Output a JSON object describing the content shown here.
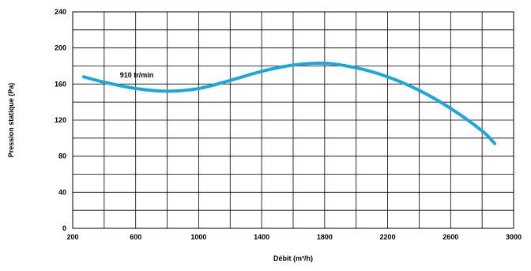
{
  "chart_data": {
    "type": "line",
    "title": "",
    "xlabel": "Débit (m³/h)",
    "ylabel": "Pression statique (Pa)",
    "xlim": [
      200,
      3000
    ],
    "ylim": [
      0,
      240
    ],
    "x_ticks": [
      "200",
      "600",
      "1000",
      "1400",
      "1800",
      "2200",
      "2600",
      "3000"
    ],
    "y_ticks": [
      "0",
      "40",
      "80",
      "120",
      "160",
      "200",
      "240"
    ],
    "grid": true,
    "series_color": "#1aa7e0",
    "series": [
      {
        "x": [
          270,
          400,
          600,
          800,
          1000,
          1200,
          1400,
          1600,
          1800,
          2000,
          2200,
          2400,
          2600,
          2800,
          2880
        ],
        "y": [
          168,
          162,
          155,
          152,
          155,
          164,
          174,
          181,
          183,
          178,
          168,
          153,
          133,
          108,
          94
        ]
      }
    ],
    "annotations": [
      {
        "text": "910 tr/min",
        "x": 600,
        "y": 170
      }
    ]
  }
}
